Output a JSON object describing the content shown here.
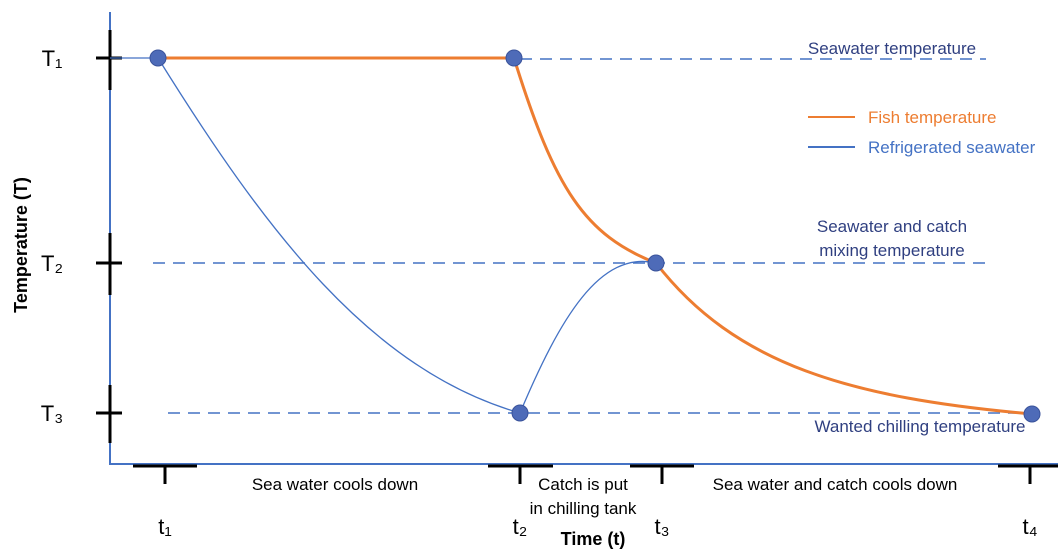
{
  "chart_data": {
    "type": "line",
    "xlabel": "Time (t)",
    "ylabel": "Temperature (T)",
    "y_ticks": [
      "T₁",
      "T₂",
      "T₃"
    ],
    "x_ticks": [
      "t₁",
      "t₂",
      "t₃",
      "t₄"
    ],
    "legend": [
      {
        "name": "Fish temperature",
        "color": "#ed7d31"
      },
      {
        "name": "Refrigerated seawater",
        "color": "#4472c4"
      }
    ],
    "reference_lines": [
      {
        "label": "Seawater temperature",
        "level": "T1"
      },
      {
        "label_lines": [
          "Seawater and catch",
          "mixing temperature"
        ],
        "level": "T2"
      },
      {
        "label": "Wanted chilling temperature",
        "level": "T3"
      }
    ],
    "phases": [
      {
        "label_lines": [
          "Sea water cools down"
        ],
        "from": "t1",
        "to": "t2"
      },
      {
        "label_lines": [
          "Catch is put",
          "in chilling tank"
        ],
        "from": "t2",
        "to": "t3"
      },
      {
        "label_lines": [
          "Sea water and catch cools down"
        ],
        "from": "t3",
        "to": "t4"
      }
    ],
    "series": [
      {
        "name": "Fish temperature",
        "points": [
          [
            "t1",
            "T1"
          ],
          [
            "t2",
            "T1"
          ],
          [
            "t3",
            "T2"
          ],
          [
            "t4",
            "T3"
          ]
        ]
      },
      {
        "name": "Refrigerated seawater",
        "points": [
          [
            "t1",
            "T1"
          ],
          [
            "t2",
            "T3"
          ],
          [
            "t3",
            "T2"
          ]
        ]
      }
    ],
    "colors": {
      "axis": "#4472c4",
      "dashed": "#4472c4",
      "text_blue": "#2f3f80",
      "fish": "#ed7d31",
      "seawater": "#4472c4",
      "marker": "#4e6bb8"
    }
  }
}
